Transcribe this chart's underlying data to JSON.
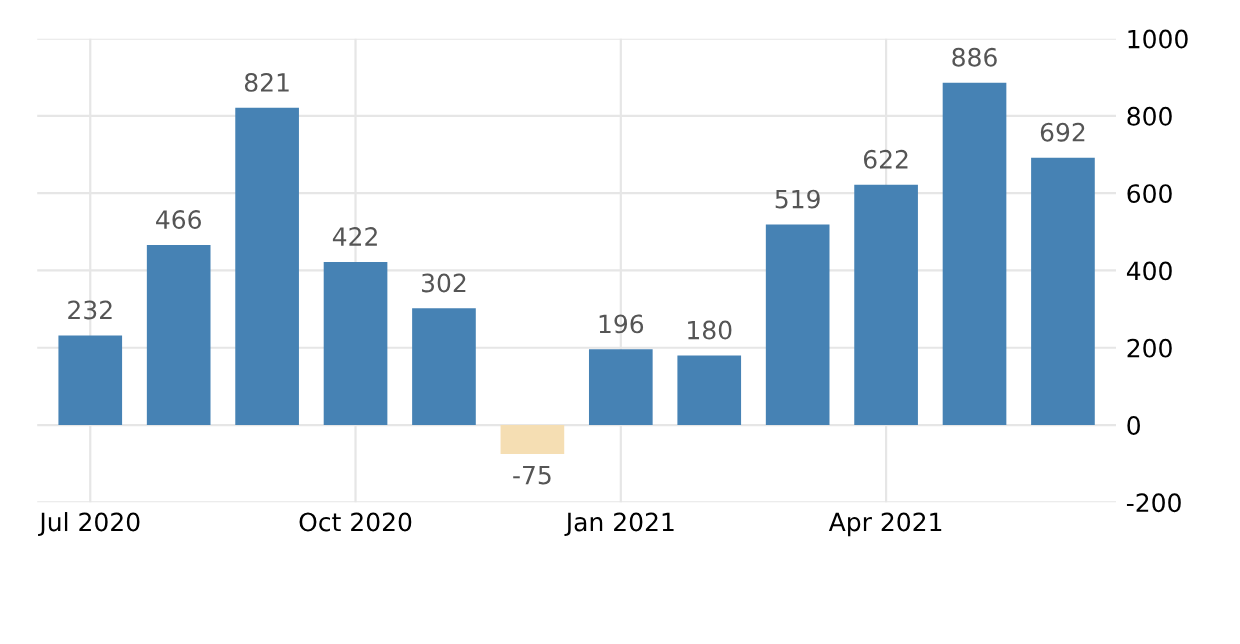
{
  "chart_data": {
    "type": "bar",
    "categories": [
      "Jul 2020",
      null,
      null,
      "Oct 2020",
      null,
      null,
      "Jan 2021",
      null,
      null,
      "Apr 2021",
      null,
      null
    ],
    "values": [
      232,
      466,
      821,
      422,
      302,
      -75,
      196,
      180,
      519,
      622,
      886,
      692
    ],
    "colors": [
      "#4682b4",
      "#4682b4",
      "#4682b4",
      "#4682b4",
      "#4682b4",
      "#f5deb3",
      "#4682b4",
      "#4682b4",
      "#4682b4",
      "#4682b4",
      "#4682b4",
      "#4682b4"
    ],
    "ylim": [
      -200,
      1000
    ],
    "yticks": [
      -200,
      0,
      200,
      400,
      600,
      800,
      1000
    ],
    "grid": true,
    "data_labels": true
  }
}
